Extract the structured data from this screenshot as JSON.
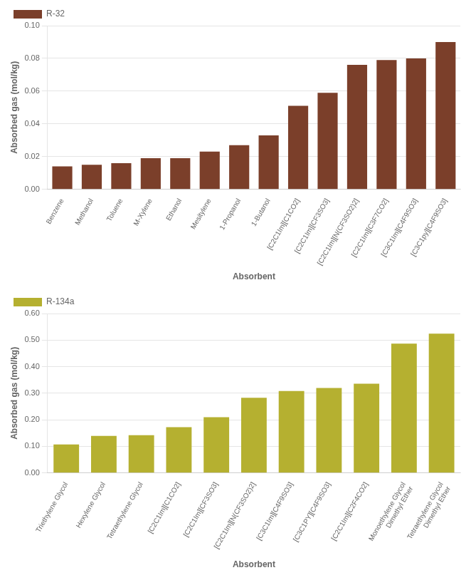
{
  "chart_data": [
    {
      "type": "bar",
      "categories": [
        "Benzene",
        "Methanol",
        "Toluene",
        "M-Xylene",
        "Ethanol",
        "Mesitylene",
        "1-Propanol",
        "1-Butanol",
        "[C2C1Im][C1CO2]",
        "[C2C1Im][CF3SO3]",
        "[C2C1Im][N(CF3SO2)2]",
        "[C2C1Im][C3F7CO2]",
        "[C3C1Im][C4F9SO3]",
        "[C3C1py][C4F9SO3]"
      ],
      "series": [
        {
          "name": "R-32",
          "color": "#7B3F2A",
          "values": [
            0.014,
            0.015,
            0.016,
            0.019,
            0.019,
            0.023,
            0.027,
            0.033,
            0.051,
            0.059,
            0.076,
            0.079,
            0.08,
            0.09
          ]
        }
      ],
      "x_label": "Absorbent",
      "y_label": "Absorbed gas (mol/kg)",
      "ylim": [
        0,
        0.1
      ],
      "yticks": [
        {
          "value": 0.0,
          "label": "0.00"
        },
        0.02,
        0.04,
        0.06,
        0.08,
        {
          "value": 0.1,
          "label": "0.10"
        }
      ],
      "grid": true,
      "legend": "upper left"
    },
    {
      "type": "bar",
      "categories": [
        "Triethylene Glycol",
        "Hexylene Glycol",
        "Tetraethylene Glycol",
        "[C2C1Im][C1CO2]",
        "[C2C1Im][CF3SO3]",
        "[C2C1Im][N(CF3SO2)2]",
        "[C3C1Im][C4F9SO3]",
        "[C3C1PY][C4F9SO3]",
        "[C2C1Im][C2F4CO2]",
        "Monoethylene Glycol\nDimethyl Ether",
        "Tetraethylene Glycol\nDimethyl Ether"
      ],
      "series": [
        {
          "name": "R-134a",
          "color": "#B5B030",
          "values": [
            0.107,
            0.139,
            0.142,
            0.172,
            0.21,
            0.283,
            0.308,
            0.32,
            0.336,
            0.487,
            0.524
          ]
        }
      ],
      "x_label": "Absorbent",
      "y_label": "Absorbed gas (mol/kg)",
      "ylim": [
        0,
        0.6
      ],
      "yticks": [
        {
          "value": 0.0,
          "label": "0.00"
        },
        {
          "value": 0.1,
          "label": "0.10"
        },
        {
          "value": 0.2,
          "label": "0.20"
        },
        {
          "value": 0.3,
          "label": "0.30"
        },
        {
          "value": 0.4,
          "label": "0.40"
        },
        {
          "value": 0.5,
          "label": "0.50"
        },
        {
          "value": 0.6,
          "label": "0.60"
        }
      ],
      "grid": true,
      "legend": "upper left"
    }
  ]
}
